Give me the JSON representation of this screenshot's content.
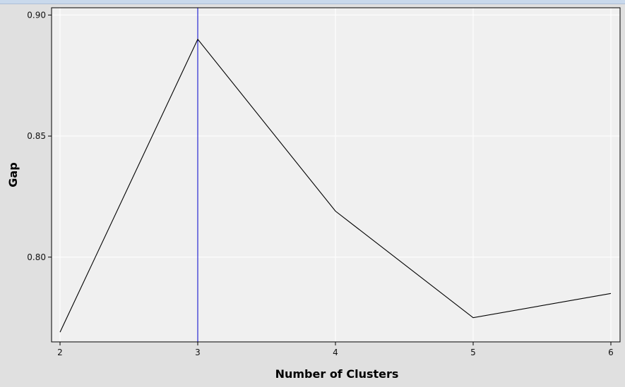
{
  "chart_data": {
    "type": "line",
    "xlabel": "Number of Clusters",
    "ylabel": "Gap",
    "x": [
      2,
      3,
      4,
      5,
      6
    ],
    "series": [
      {
        "values": [
          0.769,
          0.89,
          0.819,
          0.775,
          0.785
        ],
        "color": "#000000"
      }
    ],
    "xlim": [
      2,
      6
    ],
    "ylim": [
      0.765,
      0.903
    ],
    "xticks": [
      "2",
      "3",
      "4",
      "5",
      "6"
    ],
    "yticks": [
      "0.80",
      "0.85",
      "0.90"
    ],
    "ytick_values": [
      0.8,
      0.85,
      0.9
    ],
    "marker_line_x": 3,
    "marker_line_color": "#0000cc",
    "grid": true,
    "plot_background": "#f0f0f0",
    "grid_color": "#ffffff"
  }
}
